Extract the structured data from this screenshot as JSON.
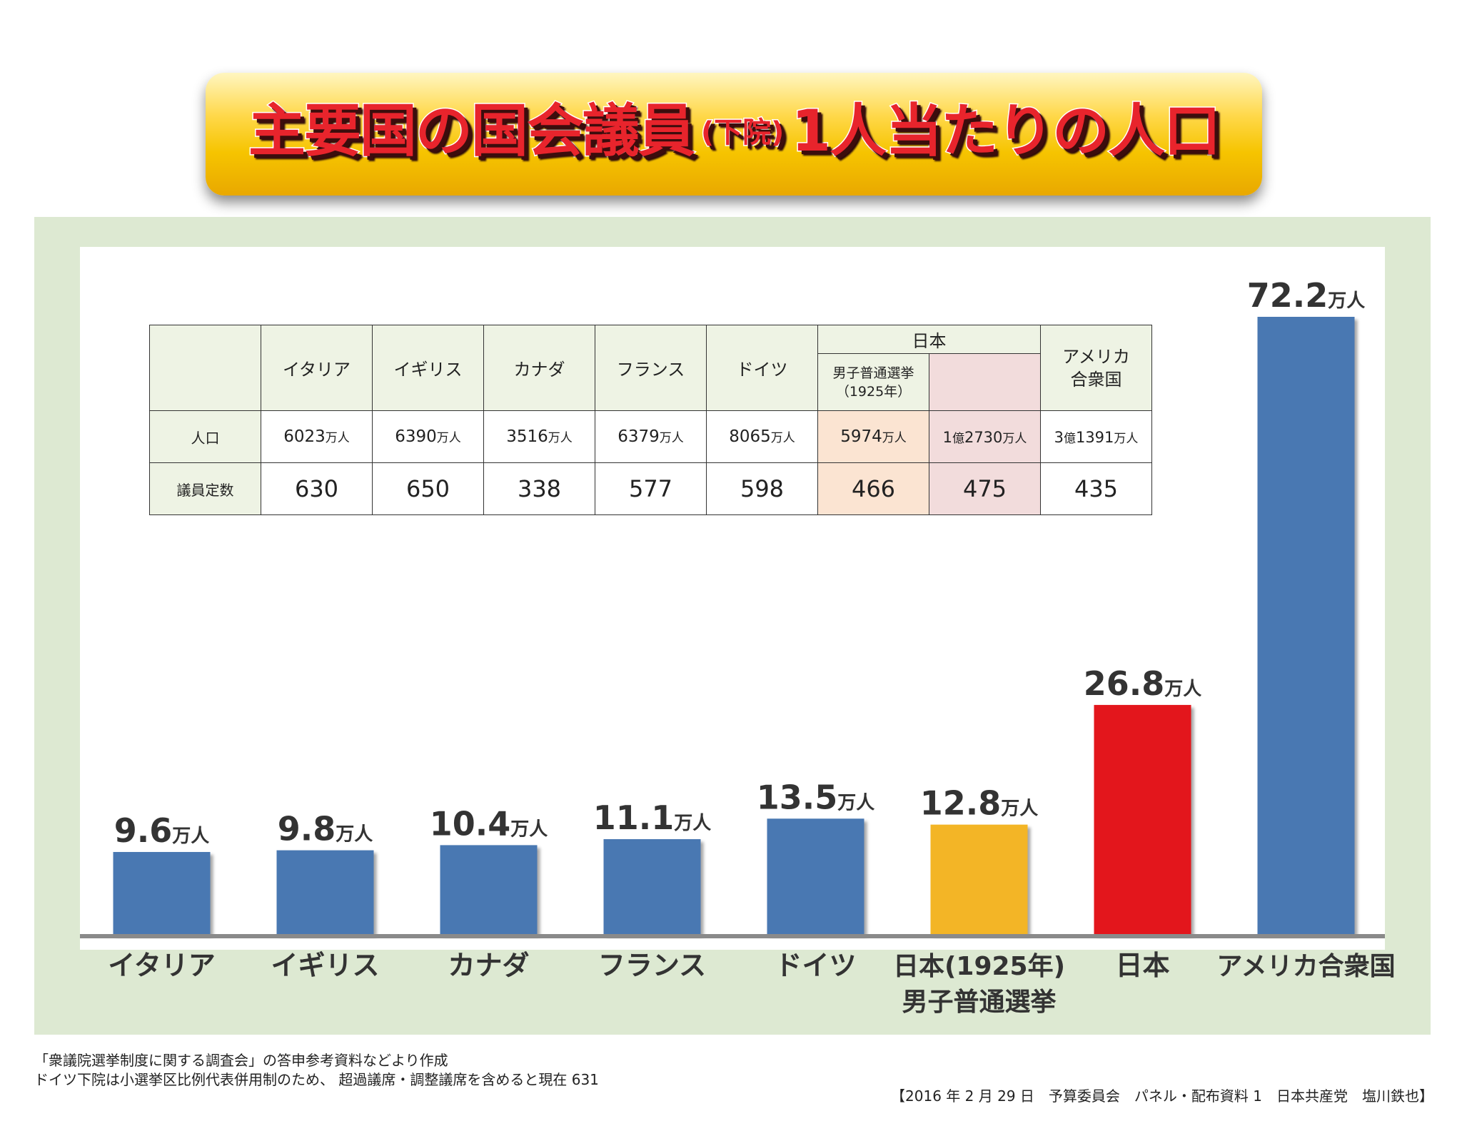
{
  "title": {
    "main": "主要国の国会議員",
    "sub": "(下院)",
    "rest": "1人当たりの人口"
  },
  "table": {
    "headers": [
      "イタリア",
      "イギリス",
      "カナダ",
      "フランス",
      "ドイツ"
    ],
    "japan_header": "日本",
    "japan_1925_header": "男子普通選挙",
    "japan_1925_year": "（1925年）",
    "usa_header_line1": "アメリカ",
    "usa_header_line2": "合衆国",
    "row_population_label": "人口",
    "row_seats_label": "議員定数",
    "population": [
      {
        "pre": "",
        "oku": "",
        "num": "6023",
        "unit": "万人"
      },
      {
        "pre": "",
        "oku": "",
        "num": "6390",
        "unit": "万人"
      },
      {
        "pre": "",
        "oku": "",
        "num": "3516",
        "unit": "万人"
      },
      {
        "pre": "",
        "oku": "",
        "num": "6379",
        "unit": "万人"
      },
      {
        "pre": "",
        "oku": "",
        "num": "8065",
        "unit": "万人"
      },
      {
        "pre": "",
        "oku": "",
        "num": "5974",
        "unit": "万人"
      },
      {
        "pre": "1",
        "oku": "億",
        "num": "2730",
        "unit": "万人"
      },
      {
        "pre": "3",
        "oku": "億",
        "num": "1391",
        "unit": "万人"
      }
    ],
    "seats": [
      "630",
      "650",
      "338",
      "577",
      "598",
      "466",
      "475",
      "435"
    ]
  },
  "chart_data": {
    "type": "bar",
    "title": "主要国の国会議員(下院)1人当たりの人口",
    "unit": "万人",
    "categories": [
      "イタリア",
      "イギリス",
      "カナダ",
      "フランス",
      "ドイツ",
      "日本(1925年)男子普通選挙",
      "日本",
      "アメリカ合衆国"
    ],
    "category_labels": [
      [
        "イタリア"
      ],
      [
        "イギリス"
      ],
      [
        "カナダ"
      ],
      [
        "フランス"
      ],
      [
        "ドイツ"
      ],
      [
        "日本(1925年)",
        "男子普通選挙"
      ],
      [
        "日本"
      ],
      [
        "アメリカ合衆国"
      ]
    ],
    "values": [
      9.6,
      9.8,
      10.4,
      11.1,
      13.5,
      12.8,
      26.8,
      72.2
    ],
    "value_labels": [
      "9.6",
      "9.8",
      "10.4",
      "11.1",
      "13.5",
      "12.8",
      "26.8",
      "72.2"
    ],
    "colors": [
      "#4a78b2",
      "#4a78b2",
      "#4a78b2",
      "#4a78b2",
      "#4a78b2",
      "#f3b526",
      "#e3161e",
      "#4a78b2"
    ],
    "ylim": [
      0,
      72.2
    ],
    "xlabel": "",
    "ylabel": ""
  },
  "notes": [
    "「衆議院選挙制度に関する調査会」の答申参考資料などより作成",
    "ドイツ下院は小選挙区比例代表併用制のため、 超過議席・調整議席を含めると現在 631"
  ],
  "credit": "【2016 年 2 月 29 日　予算委員会　パネル・配布資料 1　日本共産党　塩川鉄也】"
}
